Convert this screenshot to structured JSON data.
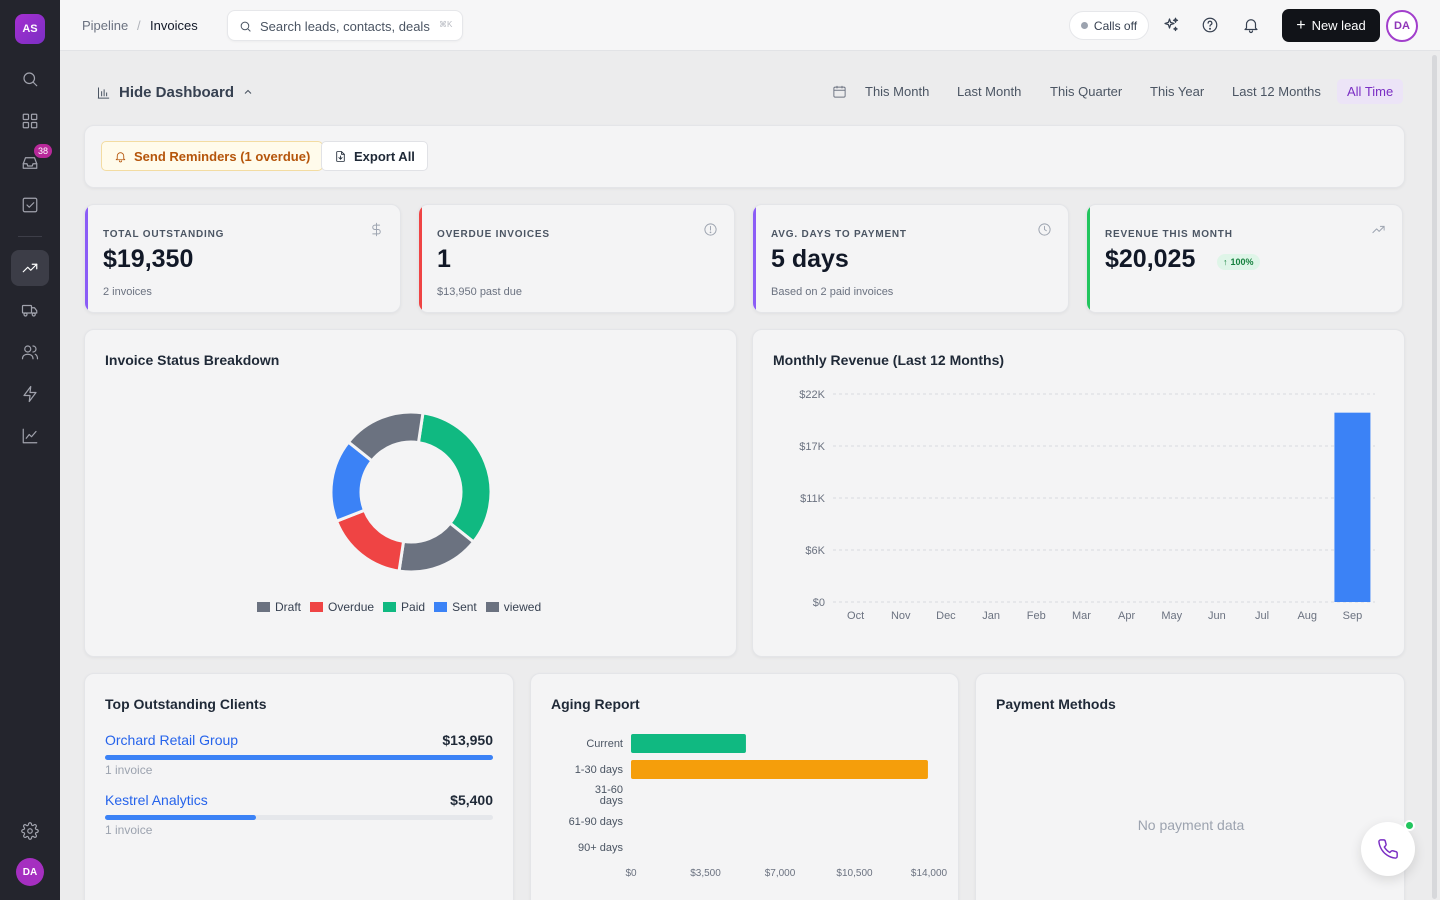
{
  "sidebar": {
    "logo_initials": "AS",
    "inbox_badge": "38",
    "user_initials": "DA",
    "items": [
      {
        "name": "search",
        "icon": "search-icon"
      },
      {
        "name": "dashboard",
        "icon": "grid-icon"
      },
      {
        "name": "inbox",
        "icon": "inbox-icon"
      },
      {
        "name": "tasks",
        "icon": "checkbox-icon"
      },
      {
        "name": "pipeline",
        "icon": "trending-up-icon",
        "active": true
      },
      {
        "name": "deliveries",
        "icon": "truck-icon"
      },
      {
        "name": "contacts",
        "icon": "users-icon"
      },
      {
        "name": "automations",
        "icon": "lightning-icon"
      },
      {
        "name": "reports",
        "icon": "line-chart-icon"
      },
      {
        "name": "settings",
        "icon": "gear-icon"
      }
    ]
  },
  "header": {
    "breadcrumb": [
      "Pipeline",
      "Invoices"
    ],
    "breadcrumb_separator": "/",
    "search_placeholder": "Search leads, contacts, deals",
    "search_shortcut": "⌘K",
    "calls_label": "Calls off",
    "new_lead_label": "New lead",
    "user_initials": "DA"
  },
  "dashboard": {
    "toggle_label": "Hide Dashboard",
    "periods": [
      "This Month",
      "Last Month",
      "This Quarter",
      "This Year",
      "Last 12 Months",
      "All Time"
    ],
    "active_period": "All Time"
  },
  "toolbar": {
    "reminders_label": "Send Reminders (1 overdue)",
    "export_label": "Export All"
  },
  "kpis": [
    {
      "label": "TOTAL OUTSTANDING",
      "value": "$19,350",
      "sub": "2 invoices",
      "accent": "#8b5cf6",
      "icon": "dollar-icon"
    },
    {
      "label": "OVERDUE INVOICES",
      "value": "1",
      "sub": "$13,950 past due",
      "accent": "#ef4444",
      "icon": "alert-circle-icon"
    },
    {
      "label": "AVG. DAYS TO PAYMENT",
      "value": "5 days",
      "sub": "Based on 2 paid invoices",
      "accent": "#8b5cf6",
      "icon": "clock-icon"
    },
    {
      "label": "REVENUE THIS MONTH",
      "value": "$20,025",
      "sub": "",
      "badge": "100%",
      "accent": "#22c55e",
      "icon": "trending-up-icon"
    }
  ],
  "panels": {
    "status_title": "Invoice Status Breakdown",
    "revenue_title": "Monthly Revenue (Last 12 Months)",
    "clients_title": "Top Outstanding Clients",
    "aging_title": "Aging Report",
    "payments_title": "Payment Methods",
    "payments_empty": "No payment data"
  },
  "top_clients": [
    {
      "name": "Orchard Retail Group",
      "amount": "$13,950",
      "count": "1 invoice",
      "share": 1.0
    },
    {
      "name": "Kestrel Analytics",
      "amount": "$5,400",
      "count": "1 invoice",
      "share": 0.39
    }
  ],
  "colors": {
    "draft": "#6b7280",
    "overdue": "#ef4444",
    "paid": "#10b981",
    "sent": "#3b82f6",
    "viewed": "#6b7280",
    "revenue_bar": "#3b82f6",
    "aging_current": "#10b981",
    "aging_1_30": "#f59e0b",
    "brand": "#7b2fc4"
  },
  "chart_data": [
    {
      "type": "pie",
      "title": "Invoice Status Breakdown",
      "donut": true,
      "categories": [
        "Draft",
        "Overdue",
        "Paid",
        "Sent",
        "viewed"
      ],
      "values": [
        1,
        1,
        2,
        1,
        1
      ],
      "colors": [
        "#6b7280",
        "#ef4444",
        "#10b981",
        "#3b82f6",
        "#6b7280"
      ],
      "legend": "bottom"
    },
    {
      "type": "bar",
      "title": "Monthly Revenue (Last 12 Months)",
      "categories": [
        "Oct",
        "Nov",
        "Dec",
        "Jan",
        "Feb",
        "Mar",
        "Apr",
        "May",
        "Jun",
        "Jul",
        "Aug",
        "Sep"
      ],
      "values": [
        0,
        0,
        0,
        0,
        0,
        0,
        0,
        0,
        0,
        0,
        0,
        20025
      ],
      "ylim": [
        0,
        22000
      ],
      "yticks": [
        0,
        5500,
        11000,
        16500,
        22000
      ],
      "ytick_labels": [
        "$0",
        "$6K",
        "$11K",
        "$17K",
        "$22K"
      ],
      "grid": true
    },
    {
      "type": "bar",
      "orientation": "horizontal",
      "title": "Aging Report",
      "categories": [
        "Current",
        "1-30 days",
        "31-60 days",
        "61-90 days",
        "90+ days"
      ],
      "values": [
        5400,
        13950,
        0,
        0,
        0
      ],
      "colors": [
        "#10b981",
        "#f59e0b",
        "#f59e0b",
        "#f59e0b",
        "#f59e0b"
      ],
      "xlim": [
        0,
        14000
      ],
      "xticks": [
        0,
        3500,
        7000,
        10500,
        14000
      ],
      "xtick_labels": [
        "$0",
        "$3,500",
        "$7,000",
        "$10,500",
        "$14,000"
      ]
    }
  ]
}
